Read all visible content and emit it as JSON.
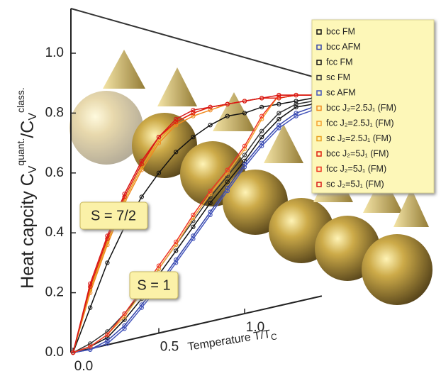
{
  "chart_data": {
    "type": "line",
    "y_label": [
      "Heat capcity C",
      "V",
      "quant.",
      "/C",
      "V",
      "class."
    ],
    "x_label": [
      "Temperature T/T",
      "C"
    ],
    "annotations": [
      "S = 7/2",
      "S = 1"
    ],
    "x": [
      0,
      0.1,
      0.2,
      0.3,
      0.4,
      0.5,
      0.6,
      0.7,
      0.8,
      0.9,
      1.0,
      1.1,
      1.2,
      1.3,
      1.4
    ],
    "xlim": [
      0,
      1.45
    ],
    "ylim": [
      0,
      1.15
    ],
    "xticks": [
      {
        "value": 0,
        "label": "0.0"
      },
      0.5,
      {
        "value": 1,
        "label": "1.0"
      }
    ],
    "yticks": [
      {
        "value": 0,
        "label": "0.0"
      },
      0.2,
      0.4,
      0.6,
      0.8,
      {
        "value": 1,
        "label": "1.0"
      }
    ],
    "legend": "upper right",
    "series": [
      {
        "name": "bcc FM",
        "color": "#111111",
        "values": [
          0,
          0.02,
          0.05,
          0.11,
          0.18,
          0.26,
          0.34,
          0.42,
          0.5,
          0.57,
          0.64,
          0.72,
          0.78,
          0.82,
          0.83
        ]
      },
      {
        "name": "bcc AFM",
        "color": "#3344aa",
        "values": [
          0,
          0.01,
          0.04,
          0.09,
          0.16,
          0.23,
          0.31,
          0.39,
          0.47,
          0.55,
          0.63,
          0.7,
          0.76,
          0.8,
          0.82
        ]
      },
      {
        "name": "fcc FM",
        "color": "#111111",
        "values": [
          0,
          0.15,
          0.3,
          0.42,
          0.52,
          0.6,
          0.67,
          0.72,
          0.76,
          0.79,
          0.8,
          0.82,
          0.83,
          0.84,
          0.85
        ]
      },
      {
        "name": "sc FM",
        "color": "#333333",
        "values": [
          0,
          0.03,
          0.07,
          0.13,
          0.2,
          0.28,
          0.36,
          0.44,
          0.52,
          0.59,
          0.66,
          0.74,
          0.8,
          0.83,
          0.84
        ]
      },
      {
        "name": "sc AFM",
        "color": "#4455bb",
        "values": [
          0,
          0.01,
          0.03,
          0.08,
          0.15,
          0.22,
          0.3,
          0.38,
          0.46,
          0.54,
          0.62,
          0.69,
          0.75,
          0.79,
          0.81
        ]
      },
      {
        "name": "bcc J₂=2.5J₁ (FM)",
        "color": "#f08a20",
        "values": [
          0,
          0.2,
          0.36,
          0.5,
          0.61,
          0.7,
          0.76,
          0.79,
          0.81,
          0.83,
          0.84,
          0.85,
          0.85,
          0.86,
          0.86
        ]
      },
      {
        "name": "fcc J₂=2.5J₁ (FM)",
        "color": "#f5a030",
        "values": [
          0,
          0.02,
          0.06,
          0.12,
          0.2,
          0.28,
          0.36,
          0.45,
          0.53,
          0.6,
          0.68,
          0.78,
          0.86,
          0.86,
          0.86
        ]
      },
      {
        "name": "sc J₂=2.5J₁ (FM)",
        "color": "#e8a020",
        "values": [
          0,
          0.21,
          0.37,
          0.51,
          0.62,
          0.71,
          0.77,
          0.8,
          0.82,
          0.83,
          0.84,
          0.85,
          0.85,
          0.86,
          0.86
        ]
      },
      {
        "name": "bcc J₂=5J₁ (FM)",
        "color": "#e02010",
        "values": [
          0,
          0.22,
          0.38,
          0.52,
          0.63,
          0.72,
          0.77,
          0.8,
          0.82,
          0.83,
          0.84,
          0.85,
          0.85,
          0.86,
          0.86
        ]
      },
      {
        "name": "fcc J₂=5J₁ (FM)",
        "color": "#ee3322",
        "values": [
          0,
          0.02,
          0.06,
          0.13,
          0.21,
          0.29,
          0.37,
          0.46,
          0.54,
          0.61,
          0.69,
          0.79,
          0.86,
          0.86,
          0.86
        ]
      },
      {
        "name": "sc J₂=5J₁ (FM)",
        "color": "#d81818",
        "values": [
          0,
          0.23,
          0.39,
          0.53,
          0.64,
          0.72,
          0.78,
          0.81,
          0.82,
          0.83,
          0.84,
          0.85,
          0.86,
          0.86,
          0.86
        ]
      }
    ]
  }
}
